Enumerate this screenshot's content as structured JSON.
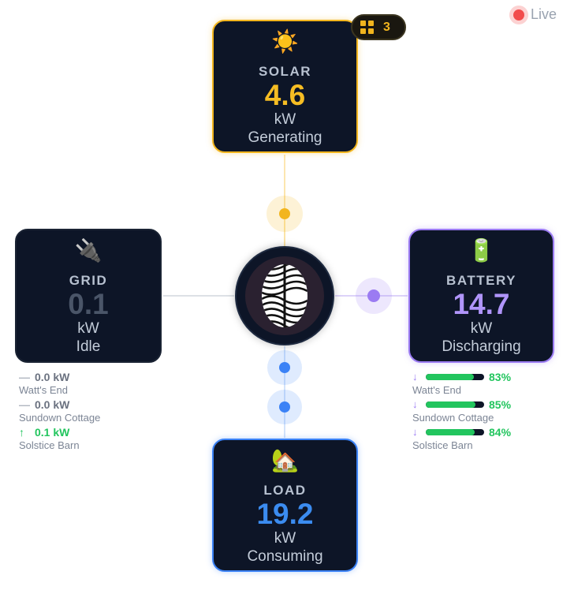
{
  "live": {
    "label": "Live"
  },
  "badge": {
    "count": "3"
  },
  "solar": {
    "emoji": "☀️",
    "title": "SOLAR",
    "value": "4.6",
    "unit": "kW",
    "status": "Generating"
  },
  "grid": {
    "emoji": "🔌",
    "title": "GRID",
    "value": "0.1",
    "unit": "kW",
    "status": "Idle"
  },
  "battery": {
    "emoji": "🔋",
    "title": "BATTERY",
    "value": "14.7",
    "unit": "kW",
    "status": "Discharging"
  },
  "load": {
    "emoji": "🏡",
    "title": "LOAD",
    "value": "19.2",
    "unit": "kW",
    "status": "Consuming"
  },
  "grid_sites": [
    {
      "arrow": "—",
      "value": "0.0 kW",
      "name": "Watt's End"
    },
    {
      "arrow": "—",
      "value": "0.0 kW",
      "name": "Sundown Cottage"
    },
    {
      "arrow": "↑",
      "value": "0.1 kW",
      "name": "Solstice Barn"
    }
  ],
  "battery_sites": [
    {
      "arrow": "↓",
      "percent": "83%",
      "level": 0.83,
      "name": "Watt's End"
    },
    {
      "arrow": "↓",
      "percent": "85%",
      "level": 0.85,
      "name": "Sundown Cottage"
    },
    {
      "arrow": "↓",
      "percent": "84%",
      "level": 0.84,
      "name": "Solstice Barn"
    }
  ],
  "colors": {
    "solar": "#f2b51e",
    "battery": "#9b7bf2",
    "load": "#3b82f6",
    "positive": "#22c55e",
    "live": "#f24b4b"
  }
}
